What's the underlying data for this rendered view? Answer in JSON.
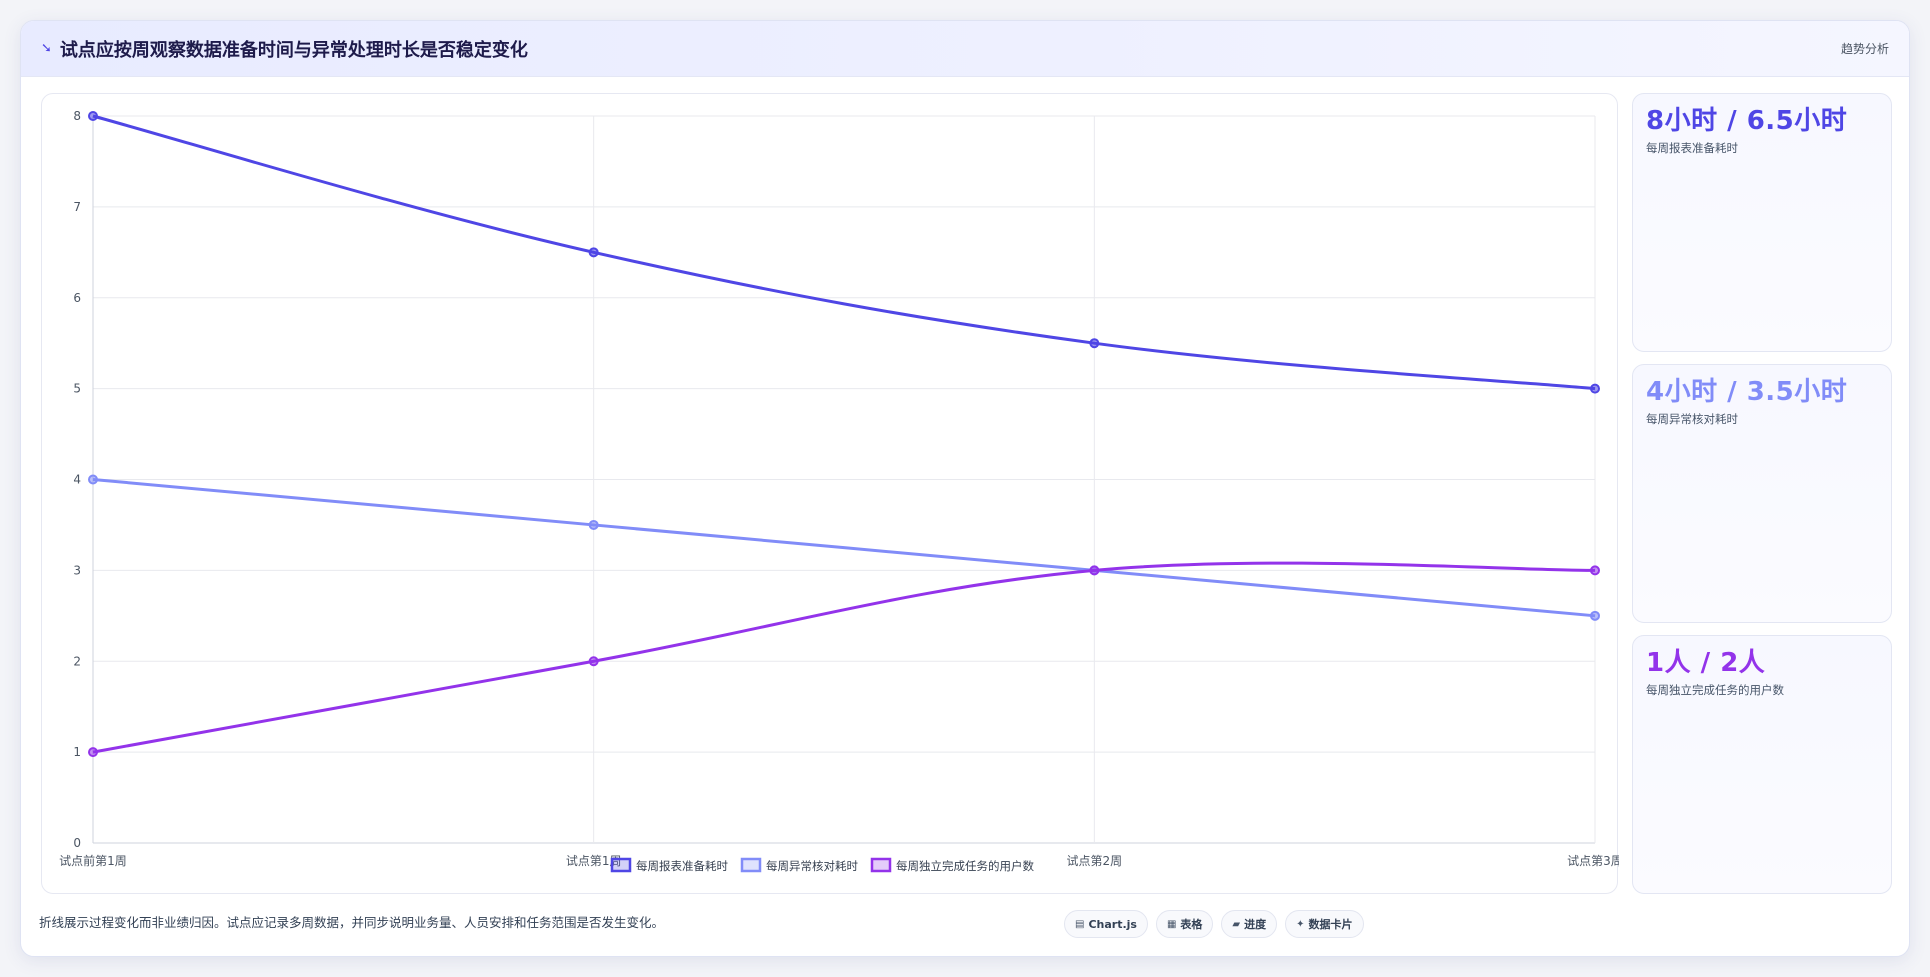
{
  "header": {
    "icon": "trend-icon",
    "title": "试点应按周观察数据准备时间与异常处理时长是否稳定变化",
    "tag": "趋势分析"
  },
  "chart_data": {
    "type": "line",
    "categories": [
      "试点前第1周",
      "试点第1周",
      "试点第2周",
      "试点第3周"
    ],
    "ylim": [
      0,
      8
    ],
    "yticks": [
      0,
      1,
      2,
      3,
      4,
      5,
      6,
      7,
      8
    ],
    "grid": true,
    "legend_position": "bottom",
    "series": [
      {
        "name": "每周报表准备耗时",
        "values": [
          8,
          6.5,
          5.5,
          5
        ],
        "color": "#4f46e5"
      },
      {
        "name": "每周异常核对耗时",
        "values": [
          4,
          3.5,
          3,
          2.5
        ],
        "color": "#818cf8"
      },
      {
        "name": "每周独立完成任务的用户数",
        "values": [
          1,
          2,
          3,
          3
        ],
        "color": "#9333ea"
      }
    ]
  },
  "stats": [
    {
      "value": "8小时 / 6.5小时",
      "label": "每周报表准备耗时",
      "color": "#4f46e5"
    },
    {
      "value": "4小时 / 3.5小时",
      "label": "每周异常核对耗时",
      "color": "#818cf8"
    },
    {
      "value": "1人 / 2人",
      "label": "每周独立完成任务的用户数",
      "color": "#9333ea"
    }
  ],
  "footer": {
    "note": "折线展示过程变化而非业绩归因。试点应记录多周数据，并同步说明业务量、人员安排和任务范围是否发生变化。",
    "pills": [
      {
        "icon": "chart-icon",
        "symbol": "▤",
        "label": "Chart.js"
      },
      {
        "icon": "table-icon",
        "symbol": "▦",
        "label": "表格"
      },
      {
        "icon": "progress-icon",
        "symbol": "▰",
        "label": "进度"
      },
      {
        "icon": "card-icon",
        "symbol": "✦",
        "label": "数据卡片"
      }
    ]
  }
}
